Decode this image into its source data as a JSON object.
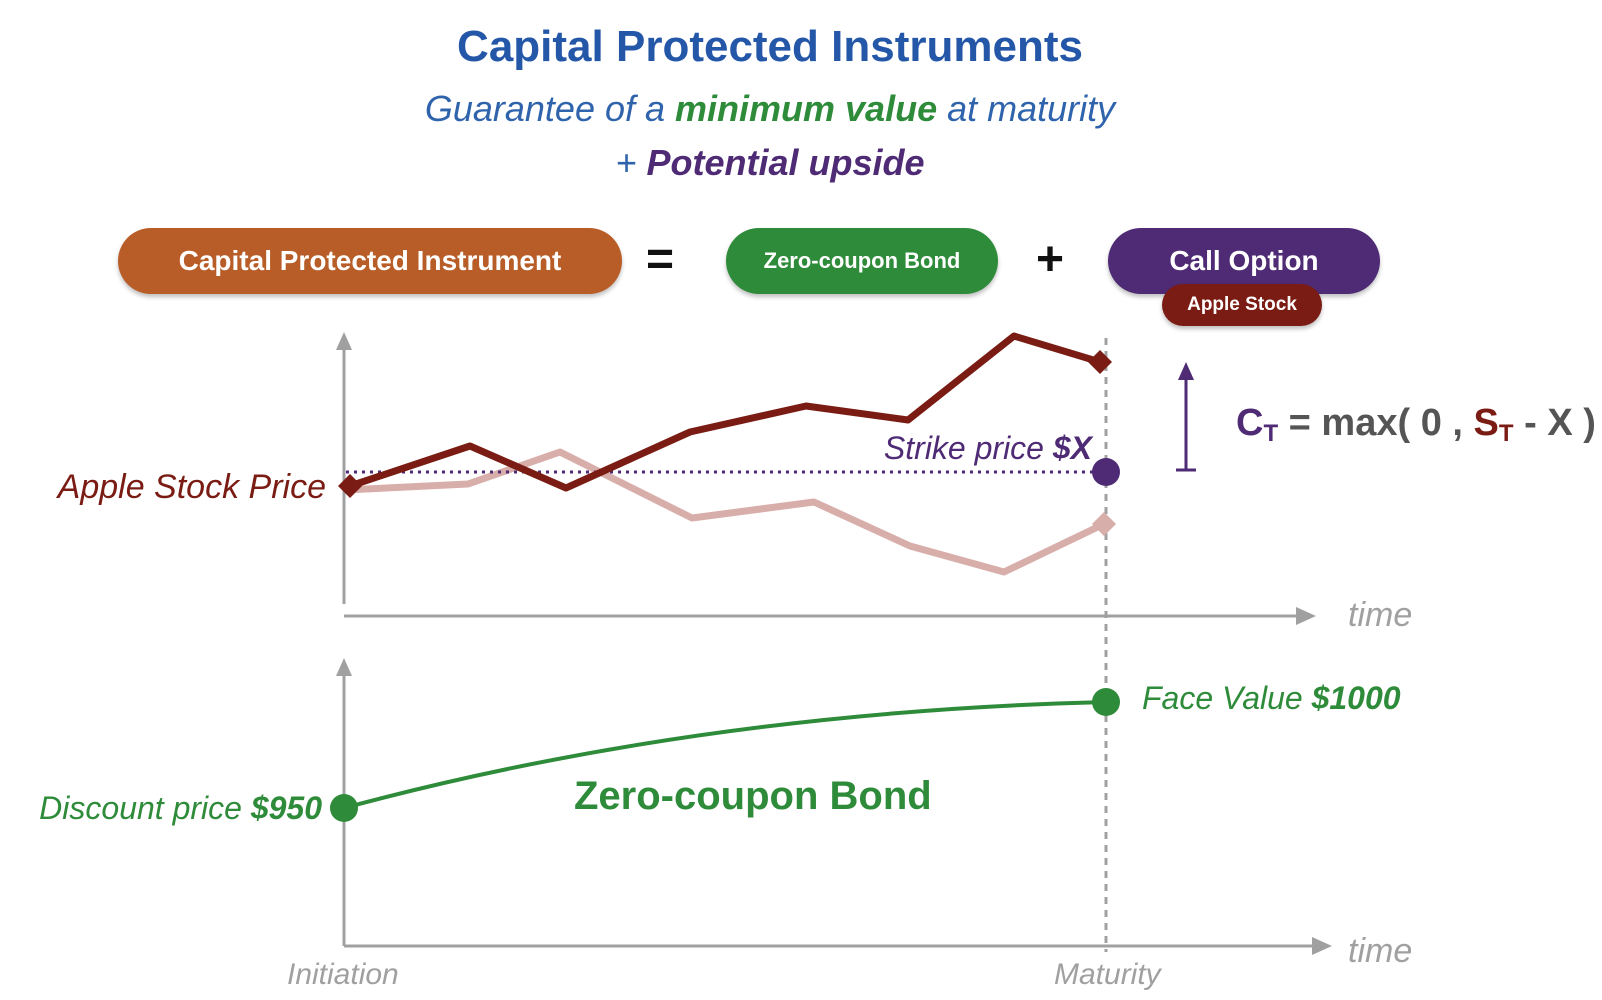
{
  "title": "Capital Protected Instruments",
  "subtitle": {
    "prefix": "Guarantee of a ",
    "highlight": "minimum value",
    "suffix": " at maturity"
  },
  "subtitle2": {
    "prefix": "+ ",
    "highlight": "Potential upside"
  },
  "equation": {
    "cpi": "Capital Protected Instrument",
    "equals": "=",
    "bond": "Zero-coupon Bond",
    "plus": "+",
    "call": "Call Option",
    "underlying": "Apple Stock"
  },
  "labels": {
    "apple_stock_price": "Apple Stock Price",
    "strike_prefix": "Strike price ",
    "strike_value": "$X",
    "face_prefix": "Face Value ",
    "face_value": "$1000",
    "discount_prefix": "Discount price ",
    "discount_value": "$950",
    "bond_curve": "Zero-coupon Bond",
    "time_top": "time",
    "time_bottom": "time",
    "initiation": "Initiation",
    "maturity": "Maturity"
  },
  "formula": {
    "c": "C",
    "t1": "T",
    "eq": " = max( 0 , ",
    "s": "S",
    "t2": "T",
    "rest": " - X )"
  },
  "colors": {
    "title_blue": "#2457a8",
    "orange": "#b85d27",
    "green": "#2e8b3a",
    "purple": "#4e2b74",
    "dark_red": "#7a1c14",
    "faded_red": "#d8aeaa",
    "axis_gray": "#a0a0a0"
  }
}
